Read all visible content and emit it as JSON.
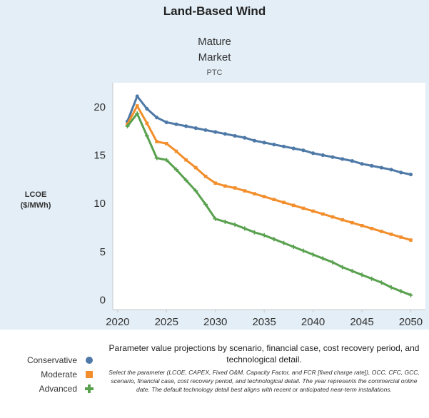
{
  "chart_data": {
    "type": "line",
    "title": "Land-Based Wind",
    "subtitle_lines": [
      "Mature",
      "Market"
    ],
    "case_label": "PTC",
    "ylabel_lines": [
      "LCOE",
      "($/MWh)"
    ],
    "xlabel": "",
    "xlim": [
      2019.5,
      2051.5
    ],
    "ylim": [
      -1,
      22.5
    ],
    "x_ticks": [
      2020,
      2025,
      2030,
      2035,
      2040,
      2045,
      2050
    ],
    "y_ticks": [
      0,
      5,
      10,
      15,
      20
    ],
    "grid": false,
    "legend_position": "bottom-left",
    "x": [
      2021,
      2022,
      2023,
      2024,
      2025,
      2026,
      2027,
      2028,
      2029,
      2030,
      2031,
      2032,
      2033,
      2034,
      2035,
      2036,
      2037,
      2038,
      2039,
      2040,
      2041,
      2042,
      2043,
      2044,
      2045,
      2046,
      2047,
      2048,
      2049,
      2050
    ],
    "series": [
      {
        "name": "Conservative",
        "color": "#4e79a7",
        "marker": "circle",
        "values": [
          18.5,
          21.1,
          19.8,
          18.9,
          18.4,
          18.2,
          18.0,
          17.8,
          17.6,
          17.4,
          17.2,
          17.0,
          16.8,
          16.5,
          16.3,
          16.1,
          15.9,
          15.7,
          15.5,
          15.2,
          15.0,
          14.8,
          14.6,
          14.4,
          14.1,
          13.9,
          13.7,
          13.5,
          13.2,
          13.0
        ]
      },
      {
        "name": "Moderate",
        "color": "#f28e2b",
        "marker": "square",
        "values": [
          18.2,
          20.1,
          18.3,
          16.4,
          16.2,
          15.4,
          14.5,
          13.7,
          12.8,
          12.1,
          11.8,
          11.6,
          11.3,
          11.0,
          10.7,
          10.4,
          10.1,
          9.8,
          9.5,
          9.2,
          8.9,
          8.6,
          8.3,
          8.0,
          7.7,
          7.4,
          7.1,
          6.8,
          6.5,
          6.2
        ]
      },
      {
        "name": "Advanced",
        "color": "#59a14f",
        "marker": "plus",
        "values": [
          18.0,
          19.3,
          17.0,
          14.7,
          14.5,
          13.5,
          12.4,
          11.3,
          9.9,
          8.4,
          8.1,
          7.8,
          7.4,
          7.0,
          6.7,
          6.3,
          5.9,
          5.5,
          5.1,
          4.7,
          4.3,
          3.9,
          3.4,
          3.0,
          2.6,
          2.2,
          1.8,
          1.3,
          0.9,
          0.5
        ]
      }
    ]
  },
  "legend": {
    "items": [
      {
        "label": "Conservative",
        "marker": "circle"
      },
      {
        "label": "Moderate",
        "marker": "square"
      },
      {
        "label": "Advanced",
        "marker": "plus"
      }
    ]
  },
  "note": {
    "title": "Parameter value projections by scenario, financial case, cost recovery period, and technological detail.",
    "body": "Select the parameter (LCOE, CAPEX, Fixed O&M, Capacity Factor, and FCR [fixed charge rate]), OCC, CFC, GCC, scenario, financial case, cost recovery period, and technological detail. The year represents the commercial online date. The default technology detail best aligns with recent or anticipated near-term installations."
  }
}
